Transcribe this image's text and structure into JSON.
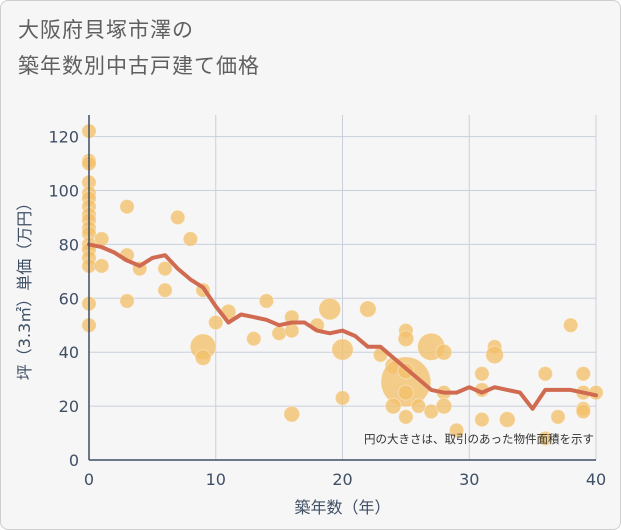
{
  "page": {
    "title_line1": "大阪府貝塚市澤の",
    "title_line2": "築年数別中古戸建て価格"
  },
  "chart_data": {
    "type": "scatter",
    "title": "大阪府貝塚市澤の築年数別中古戸建て価格",
    "xlabel": "築年数（年）",
    "ylabel": "坪（3.3㎡）単価（万円）",
    "xlim": [
      0,
      40
    ],
    "ylim": [
      0,
      128
    ],
    "xticks": [
      0,
      10,
      20,
      30,
      40
    ],
    "yticks": [
      0,
      20,
      40,
      60,
      80,
      100,
      120
    ],
    "grid": true,
    "annotation": "円の大きさは、取引のあった物件面積を示す",
    "colors": {
      "bubble": "#f2c06c",
      "line": "#d06b52",
      "grid": "#c9d0da",
      "axis": "#3f4f64"
    },
    "bubbles": [
      {
        "x": 0,
        "y": 122,
        "s": 1
      },
      {
        "x": 0,
        "y": 111,
        "s": 1
      },
      {
        "x": 0,
        "y": 110,
        "s": 1
      },
      {
        "x": 0,
        "y": 103,
        "s": 1
      },
      {
        "x": 0,
        "y": 99,
        "s": 1
      },
      {
        "x": 0,
        "y": 97,
        "s": 1
      },
      {
        "x": 0,
        "y": 94,
        "s": 1
      },
      {
        "x": 0,
        "y": 91,
        "s": 1
      },
      {
        "x": 0,
        "y": 89,
        "s": 1
      },
      {
        "x": 0,
        "y": 86,
        "s": 1
      },
      {
        "x": 0,
        "y": 84,
        "s": 1
      },
      {
        "x": 0,
        "y": 80,
        "s": 1
      },
      {
        "x": 0,
        "y": 78,
        "s": 1
      },
      {
        "x": 0,
        "y": 75,
        "s": 1
      },
      {
        "x": 0,
        "y": 72,
        "s": 1
      },
      {
        "x": 0,
        "y": 58,
        "s": 1
      },
      {
        "x": 0,
        "y": 50,
        "s": 1
      },
      {
        "x": 1,
        "y": 82,
        "s": 1
      },
      {
        "x": 1,
        "y": 72,
        "s": 1
      },
      {
        "x": 3,
        "y": 94,
        "s": 1
      },
      {
        "x": 3,
        "y": 76,
        "s": 1
      },
      {
        "x": 3,
        "y": 59,
        "s": 1
      },
      {
        "x": 4,
        "y": 71,
        "s": 1
      },
      {
        "x": 6,
        "y": 71,
        "s": 1
      },
      {
        "x": 6,
        "y": 63,
        "s": 1
      },
      {
        "x": 7,
        "y": 90,
        "s": 1
      },
      {
        "x": 8,
        "y": 82,
        "s": 1
      },
      {
        "x": 9,
        "y": 63,
        "s": 1
      },
      {
        "x": 9,
        "y": 42,
        "s": 3.2
      },
      {
        "x": 9,
        "y": 38,
        "s": 1.2
      },
      {
        "x": 10,
        "y": 51,
        "s": 1
      },
      {
        "x": 11,
        "y": 55,
        "s": 1.1
      },
      {
        "x": 13,
        "y": 45,
        "s": 1
      },
      {
        "x": 14,
        "y": 59,
        "s": 1
      },
      {
        "x": 15,
        "y": 47,
        "s": 1
      },
      {
        "x": 16,
        "y": 53,
        "s": 1
      },
      {
        "x": 16,
        "y": 48,
        "s": 1
      },
      {
        "x": 16,
        "y": 17,
        "s": 1.2
      },
      {
        "x": 18,
        "y": 50,
        "s": 1
      },
      {
        "x": 19,
        "y": 56,
        "s": 2.3
      },
      {
        "x": 20,
        "y": 41,
        "s": 2.2
      },
      {
        "x": 20,
        "y": 23,
        "s": 1
      },
      {
        "x": 22,
        "y": 56,
        "s": 1.3
      },
      {
        "x": 23,
        "y": 39,
        "s": 1
      },
      {
        "x": 24,
        "y": 35,
        "s": 1.3
      },
      {
        "x": 25,
        "y": 29,
        "s": 12
      },
      {
        "x": 25,
        "y": 48,
        "s": 1
      },
      {
        "x": 25,
        "y": 45,
        "s": 1.2
      },
      {
        "x": 25,
        "y": 33,
        "s": 1.2
      },
      {
        "x": 25,
        "y": 25,
        "s": 1.1
      },
      {
        "x": 25,
        "y": 16,
        "s": 1
      },
      {
        "x": 24,
        "y": 20,
        "s": 1.2
      },
      {
        "x": 26,
        "y": 20,
        "s": 1
      },
      {
        "x": 27,
        "y": 42,
        "s": 3.6
      },
      {
        "x": 27,
        "y": 18,
        "s": 1
      },
      {
        "x": 28,
        "y": 40,
        "s": 1.2
      },
      {
        "x": 28,
        "y": 25,
        "s": 1
      },
      {
        "x": 28,
        "y": 20,
        "s": 1.2
      },
      {
        "x": 29,
        "y": 11,
        "s": 1
      },
      {
        "x": 31,
        "y": 32,
        "s": 1
      },
      {
        "x": 31,
        "y": 26,
        "s": 1
      },
      {
        "x": 31,
        "y": 15,
        "s": 1
      },
      {
        "x": 32,
        "y": 42,
        "s": 1
      },
      {
        "x": 32,
        "y": 39,
        "s": 1.5
      },
      {
        "x": 33,
        "y": 15,
        "s": 1.2
      },
      {
        "x": 36,
        "y": 32,
        "s": 1
      },
      {
        "x": 36,
        "y": 8,
        "s": 1
      },
      {
        "x": 37,
        "y": 16,
        "s": 1
      },
      {
        "x": 38,
        "y": 50,
        "s": 1
      },
      {
        "x": 39,
        "y": 32,
        "s": 1
      },
      {
        "x": 39,
        "y": 25,
        "s": 1
      },
      {
        "x": 39,
        "y": 19,
        "s": 1
      },
      {
        "x": 39,
        "y": 18,
        "s": 1
      },
      {
        "x": 40,
        "y": 25,
        "s": 1
      }
    ],
    "trend": {
      "x": [
        0,
        1,
        2,
        3,
        4,
        5,
        6,
        7,
        8,
        9,
        10,
        11,
        12,
        13,
        14,
        15,
        16,
        17,
        18,
        19,
        20,
        21,
        22,
        23,
        24,
        25,
        26,
        27,
        28,
        29,
        30,
        31,
        32,
        33,
        34,
        35,
        36,
        37,
        38,
        39,
        40
      ],
      "y": [
        80,
        79,
        77,
        74,
        72,
        75,
        76,
        71,
        67,
        64,
        57,
        51,
        54,
        53,
        52,
        50,
        51,
        51,
        48,
        47,
        48,
        46,
        42,
        42,
        38,
        34,
        30,
        26,
        25,
        25,
        27,
        25,
        27,
        26,
        25,
        19,
        26,
        26,
        26,
        25,
        24
      ]
    }
  }
}
